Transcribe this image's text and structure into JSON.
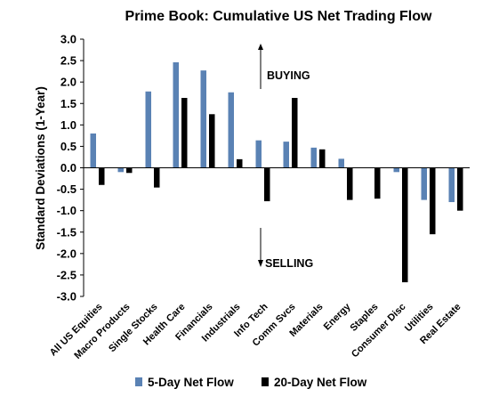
{
  "chart_data": {
    "type": "bar",
    "title": "Prime Book: Cumulative US Net Trading Flow",
    "ylabel": "Standard Deviations (1-Year)",
    "xlabel": "",
    "ylim": [
      -3.0,
      3.0
    ],
    "yticks": [
      "3.0",
      "2.5",
      "2.0",
      "1.5",
      "1.0",
      "0.5",
      "0.0",
      "-0.5",
      "-1.0",
      "-1.5",
      "-2.0",
      "-2.5",
      "-3.0"
    ],
    "ytick_values": [
      3.0,
      2.5,
      2.0,
      1.5,
      1.0,
      0.5,
      0.0,
      -0.5,
      -1.0,
      -1.5,
      -2.0,
      -2.5,
      -3.0
    ],
    "grid": false,
    "legend_position": "bottom",
    "categories": [
      "All US Equities",
      "Macro Products",
      "Single Stocks",
      "Health Care",
      "Financials",
      "Industrials",
      "Info Tech",
      "Comm Svcs",
      "Materials",
      "Energy",
      "Staples",
      "Consumer Disc",
      "Utilities",
      "Real Estate"
    ],
    "series": [
      {
        "name": "5-Day Net Flow",
        "color": "#5a82b4",
        "values": [
          0.8,
          -0.1,
          1.78,
          2.46,
          2.27,
          1.76,
          0.64,
          0.61,
          0.47,
          0.21,
          0.0,
          -0.1,
          -0.75,
          -0.8
        ]
      },
      {
        "name": "20-Day Net Flow",
        "color": "#000000",
        "values": [
          -0.4,
          -0.12,
          -0.46,
          1.63,
          1.25,
          0.2,
          -0.78,
          1.63,
          0.43,
          -0.75,
          -0.72,
          -2.67,
          -1.55,
          -1.0
        ]
      }
    ],
    "annotations": [
      {
        "text": "BUYING",
        "icon": "arrow-up-icon"
      },
      {
        "text": "SELLING",
        "icon": "arrow-down-icon"
      }
    ]
  }
}
